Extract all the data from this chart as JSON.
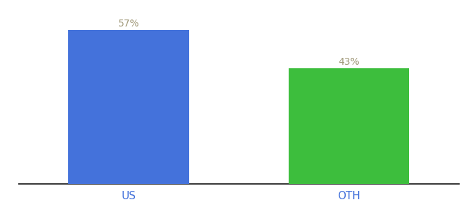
{
  "categories": [
    "US",
    "OTH"
  ],
  "values": [
    57,
    43
  ],
  "bar_colors": [
    "#4472db",
    "#3dbe3d"
  ],
  "label_color": "#a09878",
  "xlabel_color": "#4472db",
  "value_labels": [
    "57%",
    "43%"
  ],
  "background_color": "#ffffff",
  "ylim": [
    0,
    62
  ],
  "bar_width": 0.55,
  "figsize": [
    6.8,
    3.0
  ],
  "dpi": 100,
  "label_fontsize": 10,
  "tick_fontsize": 11
}
